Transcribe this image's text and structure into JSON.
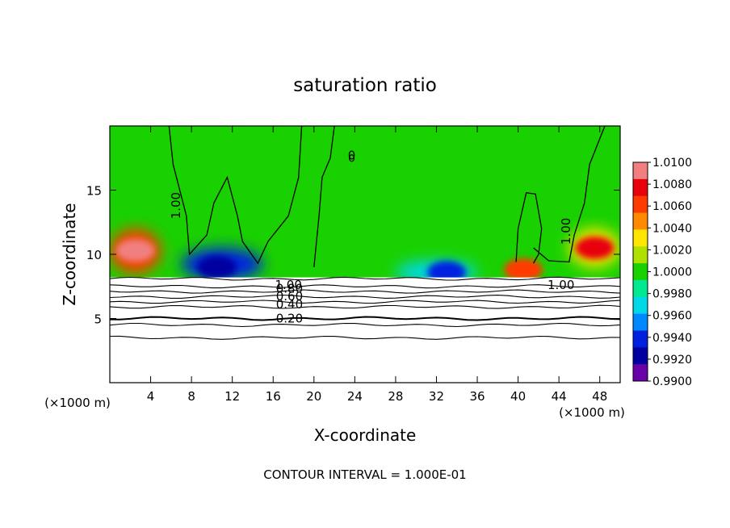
{
  "chart_data": {
    "type": "heatmap",
    "title": "saturation ratio",
    "xlabel": "X-coordinate",
    "ylabel": "Z-coordinate",
    "x_unit_left": "(×1000 m)",
    "x_unit_right": "(×1000 m)",
    "footer": "CONTOUR INTERVAL = 1.000E-01",
    "xlim": [
      0,
      50
    ],
    "ylim": [
      0,
      20
    ],
    "x_ticks": [
      4,
      8,
      12,
      16,
      20,
      24,
      28,
      32,
      36,
      40,
      44,
      48
    ],
    "x_tick_labels": [
      "4",
      "8",
      "12",
      "16",
      "20",
      "24",
      "28",
      "32",
      "36",
      "40",
      "44",
      "48"
    ],
    "y_ticks": [
      5,
      10,
      15
    ],
    "y_tick_labels": [
      "5",
      "10",
      "15"
    ],
    "colorbar": {
      "min": 0.99,
      "max": 1.01,
      "labels": [
        "1.0100",
        "1.0080",
        "1.0060",
        "1.0040",
        "1.0020",
        "1.0000",
        "0.9980",
        "0.9960",
        "0.9940",
        "0.9920",
        "0.9900"
      ],
      "colors": [
        "#f08080",
        "#e8000a",
        "#ff3a00",
        "#ff8a00",
        "#ffe600",
        "#b0e000",
        "#19d100",
        "#00e890",
        "#00d8e8",
        "#0088ff",
        "#0020e0",
        "#0000a0",
        "#6a00a8"
      ]
    },
    "contour_labels": [
      "1.00",
      "1.00",
      "0",
      "1.00",
      "1.00",
      "0.80",
      "0.60",
      "0.40",
      "0.20"
    ],
    "lower_contour_levels_z": [
      8.1,
      7.5,
      7.1,
      6.7,
      6.3,
      5.9,
      5.0,
      4.5,
      3.5
    ],
    "cloud_base_z": 8.2,
    "features": [
      {
        "name": "supersaturated-left",
        "x": [
          0,
          5
        ],
        "z": [
          8.5,
          12
        ],
        "value": 1.007
      },
      {
        "name": "supersaturated-right",
        "x": [
          45,
          50
        ],
        "z": [
          9,
          12
        ],
        "value": 1.004
      },
      {
        "name": "subsaturated-core-1",
        "x": [
          7,
          15
        ],
        "z": [
          8,
          10.5
        ],
        "value": 0.994
      },
      {
        "name": "subsaturated-core-2",
        "x": [
          28,
          36
        ],
        "z": [
          7.7,
          9.5
        ],
        "value": 0.996
      }
    ]
  }
}
